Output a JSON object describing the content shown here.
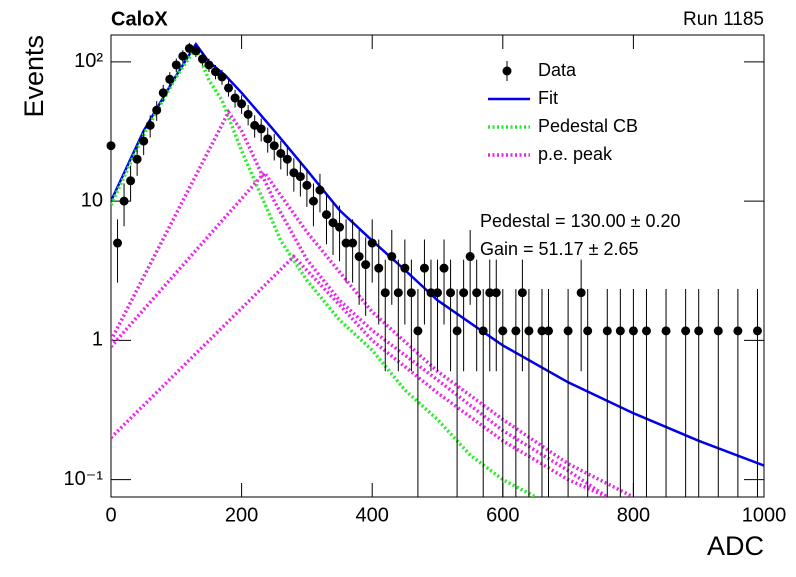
{
  "chart_data": {
    "type": "scatter",
    "title": "CaloX",
    "subtitle": "Run 1185",
    "x_label": "ADC",
    "y_label": "Events",
    "annotations": [
      "Pedestal = 130.00 ± 0.20",
      "Gain = 51.17 ± 2.65"
    ],
    "xlim": [
      0,
      1000
    ],
    "xticks": [
      0,
      200,
      400,
      600,
      800,
      1000
    ],
    "ylim": [
      0.075,
      156
    ],
    "yscale": "log",
    "yticks": [
      {
        "value": 0.1,
        "label": "10⁻¹"
      },
      1,
      10,
      {
        "value": 100,
        "label": "10²"
      }
    ],
    "legend": "top-right",
    "series": [
      {
        "name": "Data",
        "color": "#000000",
        "x": [
          0,
          10,
          20,
          30,
          40,
          50,
          60,
          70,
          80,
          90,
          100,
          110,
          120,
          130,
          140,
          150,
          160,
          170,
          180,
          190,
          200,
          210,
          220,
          230,
          240,
          250,
          260,
          270,
          280,
          290,
          300,
          310,
          320,
          330,
          340,
          350,
          360,
          370,
          380,
          390,
          400,
          410,
          420,
          430,
          440,
          450,
          460,
          470,
          480,
          490,
          500,
          510,
          520,
          530,
          540,
          550,
          560,
          570,
          580,
          590,
          600,
          620,
          630,
          640,
          660,
          670,
          700,
          720,
          730,
          760,
          780,
          800,
          820,
          850,
          880,
          900,
          930,
          960,
          990
        ],
        "values": [
          25,
          5,
          10,
          14,
          20,
          27,
          35,
          45,
          60,
          75,
          95,
          110,
          125,
          120,
          105,
          95,
          85,
          78,
          65,
          55,
          50,
          42,
          35,
          33,
          28,
          25,
          22,
          20,
          16,
          15,
          13,
          10,
          12,
          8,
          7,
          6.5,
          5,
          5,
          4,
          3.5,
          5,
          3.3,
          2.2,
          4,
          2.2,
          3.3,
          2.2,
          1.17,
          3.3,
          2.2,
          2.2,
          3.3,
          2.2,
          1.17,
          2.2,
          4,
          2.2,
          1.17,
          2.2,
          2.2,
          1.17,
          1.17,
          2.2,
          1.17,
          1.17,
          1.17,
          1.17,
          2.2,
          1.17,
          1.17,
          1.17,
          1.17,
          1.17,
          1.17,
          1.17,
          1.17,
          1.17,
          1.17,
          1.17
        ],
        "errors": [
          5.4,
          2.4,
          3.4,
          4.0,
          4.8,
          5.6,
          6.4,
          7.3,
          8.4,
          9.4,
          10.5,
          11.3,
          12.1,
          11.8,
          11.1,
          10.5,
          10,
          9.6,
          8.7,
          8,
          7.6,
          7,
          6.4,
          6.2,
          5.7,
          5.4,
          5.1,
          4.8,
          4.3,
          4.2,
          3.9,
          3.4,
          3.7,
          3.1,
          2.9,
          2.8,
          2.4,
          2.4,
          2.2,
          2,
          2.4,
          2,
          1.6,
          2.2,
          1.6,
          2,
          1.6,
          1.17,
          2,
          1.6,
          1.6,
          2,
          1.6,
          1.17,
          1.6,
          2.2,
          1.6,
          1.17,
          1.6,
          1.6,
          1.17,
          1.17,
          1.6,
          1.17,
          1.17,
          1.17,
          1.17,
          1.6,
          1.17,
          1.17,
          1.17,
          1.17,
          1.17,
          1.17,
          1.17,
          1.17,
          1.17,
          1.17,
          1.17
        ]
      }
    ],
    "curves": [
      {
        "name": "Fit",
        "color": "#0000ee",
        "style": "solid",
        "pieces": [
          {
            "x": [
              0,
              50,
              100,
              130,
              150,
              175,
              200,
              250,
              300,
              350,
              400,
              450,
              500,
              600,
              700,
              800,
              900,
              1000
            ],
            "values": [
              10,
              32,
              80,
              134,
              100,
              80,
              60,
              32,
              16.7,
              8.6,
              5.2,
              3.2,
              1.94,
              0.92,
              0.5,
              0.3,
              0.19,
              0.126
            ]
          }
        ]
      },
      {
        "name": "Pedestal CB",
        "color": "#22ee22",
        "style": "dotted",
        "pieces": [
          {
            "x": [
              0,
              50,
              100,
              130,
              150,
              170,
              200,
              230,
              260,
              300,
              350,
              400,
              450,
              500,
              550,
              600,
              650
            ],
            "values": [
              9.4,
              30,
              78,
              126,
              74,
              53,
              23,
              11,
              5.2,
              2.7,
              1.4,
              0.85,
              0.44,
              0.27,
              0.15,
              0.1,
              0.075
            ]
          }
        ]
      },
      {
        "name": "p.e. peak",
        "color": "#ee22ee",
        "style": "dotted",
        "pieces": [
          {
            "x": [
              0,
              180,
              200,
              250,
              300,
              350,
              400,
              500,
              600,
              700,
              760
            ],
            "values": [
              1,
              43.6,
              32,
              10,
              3.8,
              1.94,
              1.18,
              0.52,
              0.225,
              0.116,
              0.075
            ]
          },
          {
            "x": [
              0,
              235,
              300,
              400,
              500,
              600,
              700,
              800
            ],
            "values": [
              0.9,
              16,
              6,
              1.6,
              0.6,
              0.27,
              0.13,
              0.075
            ]
          },
          {
            "x": [
              0,
              280,
              350,
              400,
              500,
              600,
              700,
              760
            ],
            "values": [
              0.2,
              4,
              1.8,
              1,
              0.42,
              0.19,
              0.1,
              0.075
            ]
          }
        ]
      }
    ]
  }
}
